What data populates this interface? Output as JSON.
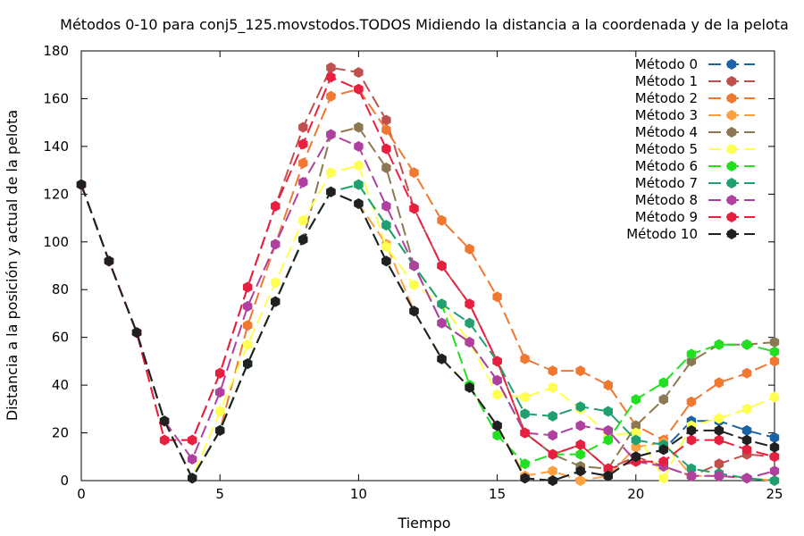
{
  "chart_data": {
    "type": "line",
    "title": "Métodos 0-10 para conj5_125.movstodos.TODOS Midiendo la distancia a la coordenada y de la pelota",
    "xlabel": "Tiempo",
    "ylabel": "Distancia a la posición y actual de la pelota",
    "xlim": [
      0,
      25
    ],
    "ylim": [
      0,
      180
    ],
    "xticks": [
      0,
      5,
      10,
      15,
      20,
      25
    ],
    "yticks": [
      0,
      20,
      40,
      60,
      80,
      100,
      120,
      140,
      160,
      180
    ],
    "legend_position": "top-right",
    "grid": false,
    "series": [
      {
        "name": "Método 0",
        "color": "#1a63a5",
        "marker": "hexagon",
        "x": [
          0,
          1,
          2,
          3,
          4,
          5,
          6,
          7,
          8,
          9,
          10,
          11,
          12,
          13,
          14,
          15,
          16,
          17,
          18,
          19,
          20,
          21,
          22,
          23,
          24,
          25
        ],
        "y": [
          124,
          92,
          62,
          25,
          1,
          21,
          49,
          75,
          101,
          121,
          116,
          92,
          71,
          51,
          39,
          23,
          1,
          0,
          4,
          2,
          10,
          13,
          25,
          25,
          21,
          18
        ]
      },
      {
        "name": "Método 1",
        "color": "#c0504d",
        "marker": "hexagon",
        "x": [
          0,
          1,
          2,
          3,
          4,
          5,
          6,
          7,
          8,
          9,
          10,
          11,
          12,
          13,
          14,
          15,
          16,
          17,
          18,
          19,
          20,
          21,
          22,
          23,
          24,
          25
        ],
        "y": [
          124,
          92,
          62,
          17,
          17,
          45,
          81,
          115,
          148,
          173,
          171,
          151,
          114,
          90,
          74,
          50,
          20,
          11,
          15,
          5,
          10,
          6,
          2,
          7,
          11,
          10
        ]
      },
      {
        "name": "Método 2",
        "color": "#f07830",
        "marker": "hexagon",
        "x": [
          0,
          1,
          2,
          3,
          4,
          5,
          6,
          7,
          8,
          9,
          10,
          11,
          12,
          13,
          14,
          15,
          16,
          17,
          18,
          19,
          20,
          21,
          22,
          23,
          24,
          25
        ],
        "y": [
          124,
          92,
          62,
          25,
          1,
          21,
          65,
          99,
          133,
          161,
          164,
          147,
          129,
          109,
          97,
          77,
          51,
          46,
          46,
          40,
          23,
          17,
          33,
          41,
          45,
          50
        ]
      },
      {
        "name": "Método 3",
        "color": "#ffa040",
        "marker": "hexagon",
        "x": [
          0,
          1,
          2,
          3,
          4,
          5,
          6,
          7,
          8,
          9,
          10,
          11,
          12,
          13,
          14,
          15,
          16,
          17,
          18,
          19,
          20,
          21,
          22,
          23,
          24,
          25
        ],
        "y": [
          124,
          92,
          62,
          25,
          1,
          21,
          49,
          75,
          101,
          121,
          116,
          99,
          71,
          51,
          39,
          23,
          2,
          4,
          0,
          2,
          14,
          16,
          2,
          2,
          1,
          0
        ]
      },
      {
        "name": "Método 4",
        "color": "#8c7853",
        "marker": "hexagon",
        "x": [
          0,
          1,
          2,
          3,
          4,
          5,
          6,
          7,
          8,
          9,
          10,
          11,
          12,
          13,
          14,
          15,
          16,
          17,
          18,
          19,
          20,
          21,
          22,
          23,
          24,
          25
        ],
        "y": [
          124,
          92,
          62,
          25,
          1,
          21,
          49,
          75,
          101,
          145,
          148,
          131,
          90,
          66,
          58,
          42,
          20,
          11,
          6,
          5,
          23,
          34,
          50,
          57,
          57,
          58
        ]
      },
      {
        "name": "Método 5",
        "color": "#ffff50",
        "marker": "hexagon",
        "x": [
          0,
          1,
          2,
          3,
          4,
          5,
          6,
          7,
          8,
          9,
          10,
          11,
          12,
          13,
          14,
          15,
          16,
          17,
          18,
          19,
          20,
          21,
          22,
          23,
          24,
          25
        ],
        "y": [
          124,
          92,
          62,
          25,
          1,
          29,
          57,
          83,
          109,
          129,
          132,
          98,
          82,
          74,
          58,
          36,
          35,
          39,
          30,
          19,
          20,
          1,
          23,
          26,
          30,
          35
        ]
      },
      {
        "name": "Método 6",
        "color": "#20e020",
        "marker": "hexagon",
        "x": [
          0,
          1,
          2,
          3,
          4,
          5,
          6,
          7,
          8,
          9,
          10,
          11,
          12,
          13,
          14,
          15,
          16,
          17,
          18,
          19,
          20,
          21,
          22,
          23,
          24,
          25
        ],
        "y": [
          124,
          92,
          62,
          25,
          1,
          21,
          49,
          75,
          101,
          121,
          124,
          107,
          90,
          74,
          40,
          19,
          7,
          11,
          11,
          17,
          34,
          41,
          53,
          57,
          57,
          54
        ]
      },
      {
        "name": "Método 7",
        "color": "#20a070",
        "marker": "hexagon",
        "x": [
          0,
          1,
          2,
          3,
          4,
          5,
          6,
          7,
          8,
          9,
          10,
          11,
          12,
          13,
          14,
          15,
          16,
          17,
          18,
          19,
          20,
          21,
          22,
          23,
          24,
          25
        ],
        "y": [
          124,
          92,
          62,
          25,
          1,
          21,
          49,
          75,
          101,
          121,
          124,
          107,
          90,
          74,
          66,
          50,
          28,
          27,
          31,
          29,
          17,
          15,
          5,
          3,
          1,
          0
        ]
      },
      {
        "name": "Método 8",
        "color": "#b040a0",
        "marker": "hexagon",
        "x": [
          0,
          1,
          2,
          3,
          4,
          5,
          6,
          7,
          8,
          9,
          10,
          11,
          12,
          13,
          14,
          15,
          16,
          17,
          18,
          19,
          20,
          21,
          22,
          23,
          24,
          25
        ],
        "y": [
          124,
          92,
          62,
          25,
          9,
          37,
          73,
          99,
          125,
          145,
          140,
          115,
          90,
          66,
          58,
          42,
          20,
          19,
          23,
          21,
          8,
          6,
          2,
          2,
          1,
          4
        ]
      },
      {
        "name": "Método 9",
        "color": "#e82040",
        "marker": "hexagon",
        "x": [
          0,
          1,
          2,
          3,
          4,
          5,
          6,
          7,
          8,
          9,
          10,
          11,
          12,
          13,
          14,
          15,
          16,
          17,
          18,
          19,
          20,
          21,
          22,
          23,
          24,
          25
        ],
        "y": [
          124,
          92,
          62,
          17,
          17,
          45,
          81,
          115,
          141,
          169,
          164,
          139,
          114,
          90,
          74,
          50,
          20,
          11,
          15,
          5,
          8,
          8,
          17,
          17,
          13,
          10
        ]
      },
      {
        "name": "Método 10",
        "color": "#202020",
        "marker": "hexagon",
        "x": [
          0,
          1,
          2,
          3,
          4,
          5,
          6,
          7,
          8,
          9,
          10,
          11,
          12,
          13,
          14,
          15,
          16,
          17,
          18,
          19,
          20,
          21,
          22,
          23,
          24,
          25
        ],
        "y": [
          124,
          92,
          62,
          25,
          1,
          21,
          49,
          75,
          101,
          121,
          116,
          92,
          71,
          51,
          39,
          23,
          1,
          0,
          4,
          2,
          10,
          13,
          21,
          21,
          17,
          14
        ]
      }
    ]
  }
}
